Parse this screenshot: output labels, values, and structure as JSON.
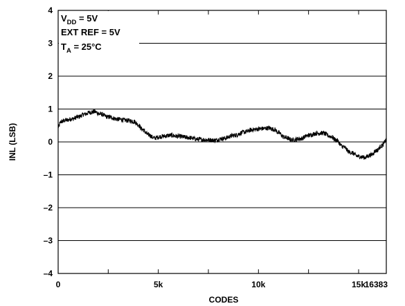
{
  "chart_data": {
    "type": "line",
    "title": "",
    "xlabel": "CODES",
    "ylabel": "INL (LSB)",
    "xlim": [
      0,
      16383
    ],
    "ylim": [
      -4,
      4
    ],
    "x_ticks": [
      {
        "value": 0,
        "label": "0"
      },
      {
        "value": 5000,
        "label": "5k"
      },
      {
        "value": 10000,
        "label": "10k"
      },
      {
        "value": 15000,
        "label": "15k"
      },
      {
        "value": 16383,
        "label": "16383"
      }
    ],
    "x_minor_ticks": [
      2500,
      7500,
      12500
    ],
    "y_ticks": [
      {
        "value": 4,
        "label": "4"
      },
      {
        "value": 3,
        "label": "3"
      },
      {
        "value": 2,
        "label": "2"
      },
      {
        "value": 1,
        "label": "1"
      },
      {
        "value": 0,
        "label": "0"
      },
      {
        "value": -1,
        "label": "–1"
      },
      {
        "value": -2,
        "label": "–2"
      },
      {
        "value": -3,
        "label": "–3"
      },
      {
        "value": -4,
        "label": "–4"
      }
    ],
    "grid": "horizontal",
    "annotations": [
      {
        "main": "V",
        "sub": "DD",
        "rest": " = 5V"
      },
      {
        "main": "EXT REF = 5V",
        "sub": "",
        "rest": ""
      },
      {
        "main": "T",
        "sub": "A",
        "rest": " = 25°C"
      }
    ],
    "series": [
      {
        "noise_lsb": 0.07,
        "points": [
          [
            0,
            0.45
          ],
          [
            150,
            0.62
          ],
          [
            400,
            0.66
          ],
          [
            700,
            0.7
          ],
          [
            1000,
            0.76
          ],
          [
            1300,
            0.84
          ],
          [
            1600,
            0.9
          ],
          [
            1800,
            0.92
          ],
          [
            2100,
            0.85
          ],
          [
            2500,
            0.76
          ],
          [
            3000,
            0.69
          ],
          [
            3500,
            0.65
          ],
          [
            3800,
            0.62
          ],
          [
            4000,
            0.52
          ],
          [
            4200,
            0.38
          ],
          [
            4500,
            0.22
          ],
          [
            4800,
            0.12
          ],
          [
            5200,
            0.17
          ],
          [
            5600,
            0.2
          ],
          [
            6000,
            0.17
          ],
          [
            6500,
            0.13
          ],
          [
            7000,
            0.08
          ],
          [
            7500,
            0.06
          ],
          [
            7800,
            0.05
          ],
          [
            8200,
            0.1
          ],
          [
            8800,
            0.2
          ],
          [
            9300,
            0.3
          ],
          [
            9700,
            0.37
          ],
          [
            10100,
            0.4
          ],
          [
            10500,
            0.42
          ],
          [
            10800,
            0.38
          ],
          [
            11000,
            0.28
          ],
          [
            11300,
            0.14
          ],
          [
            11700,
            0.06
          ],
          [
            12100,
            0.1
          ],
          [
            12500,
            0.2
          ],
          [
            12900,
            0.26
          ],
          [
            13200,
            0.27
          ],
          [
            13600,
            0.17
          ],
          [
            13900,
            0.05
          ],
          [
            14200,
            -0.14
          ],
          [
            14600,
            -0.32
          ],
          [
            15000,
            -0.44
          ],
          [
            15300,
            -0.47
          ],
          [
            15600,
            -0.4
          ],
          [
            15900,
            -0.26
          ],
          [
            16150,
            -0.12
          ],
          [
            16383,
            0.05
          ]
        ]
      }
    ]
  }
}
